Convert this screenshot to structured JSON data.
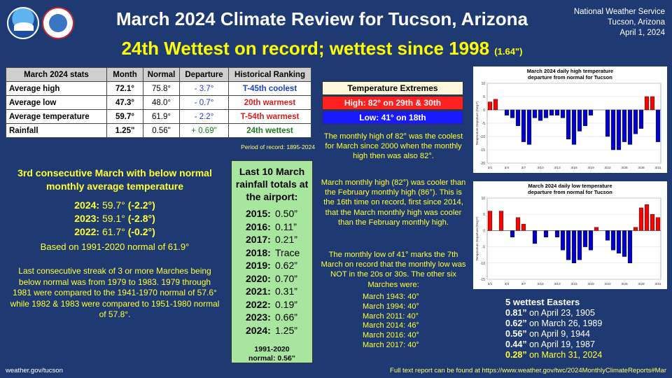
{
  "header": {
    "title": "March 2024 Climate Review for Tucson, Arizona",
    "subtitle": "24th Wettest on record; wettest since 1998",
    "subtitle_note": "(1.64\")",
    "org": "National Weather Service",
    "location": "Tucson, Arizona",
    "date": "April 1, 2024",
    "logos": [
      "noaa-logo",
      "nws-logo"
    ]
  },
  "stats_table": {
    "headers": [
      "March 2024 stats",
      "Month",
      "Normal",
      "Departure",
      "Historical Ranking"
    ],
    "rows": [
      {
        "label": "Average high",
        "month": "72.1°",
        "normal": "75.8°",
        "departure": "- 3.7°",
        "ranking": "T-45th coolest",
        "color": "#1a3fd0"
      },
      {
        "label": "Average low",
        "month": "47.3°",
        "normal": "48.0°",
        "departure": "- 0.7°",
        "ranking": "20th warmest",
        "color": "#d81e1e"
      },
      {
        "label": "Average temperature",
        "month": "59.7°",
        "normal": "61.9°",
        "departure": "- 2.2°",
        "ranking": "T-54th warmest",
        "color": "#d81e1e"
      },
      {
        "label": "Rainfall",
        "month": "1.25\"",
        "normal": "0.56\"",
        "departure": "+ 0.69\"",
        "ranking": "24th wettest",
        "color": "#1e7a1e"
      }
    ],
    "period": "Period of record: 1895-2024"
  },
  "streak": {
    "heading": "3rd consecutive March with below normal monthly average temperature",
    "years": [
      {
        "year": "2024:",
        "value": "59.7°",
        "dep": "(-2.2°)"
      },
      {
        "year": "2023:",
        "value": "59.1°",
        "dep": "(-2.8°)"
      },
      {
        "year": "2022:",
        "value": "61.7°",
        "dep": "(-0.2°)"
      }
    ],
    "based_on": "Based on 1991-2020 normal of 61.9°",
    "last_streak": "Last consecutive streak of 3 or more Marches being below normal was from 1979 to 1983. 1979 through 1981 were compared to the 1941-1970 normal of 57.6° while 1982 & 1983 were compared to 1951-1980 normal of 57.8°."
  },
  "rainfall": {
    "heading": "Last 10 March rainfall totals at the airport:",
    "rows": [
      {
        "year": "2015:",
        "value": "0.50”"
      },
      {
        "year": "2016:",
        "value": "0.11”"
      },
      {
        "year": "2017:",
        "value": "0.21”"
      },
      {
        "year": "2018:",
        "value": "Trace"
      },
      {
        "year": "2019:",
        "value": "0.62”"
      },
      {
        "year": "2020:",
        "value": "0.70”"
      },
      {
        "year": "2021:",
        "value": "0.31”"
      },
      {
        "year": "2022:",
        "value": "0.19”"
      },
      {
        "year": "2023:",
        "value": "0.66”"
      },
      {
        "year": "2024:",
        "value": "1.25”"
      }
    ],
    "normal_label": "1991-2020",
    "normal_value": "normal: 0.56”"
  },
  "extremes": {
    "heading": "Temperature Extremes",
    "high": "High: 82° on 29th & 30th",
    "low": "Low: 41° on 18th"
  },
  "notes": {
    "monthly_high": "The monthly high of 82° was the coolest for March since 2000 when the monthly high then was also 82°.",
    "cooler_than_feb": "March monthly high (82°) was cooler than the February monthly high (86°). This is the 16th time on record, first since 2014, that the March monthly high was cooler than the February monthly high.",
    "monthly_low": "The monthly low of 41° marks the 7th March on record that the monthly low was NOT in the 20s or 30s. The other six Marches were:",
    "marches": [
      "March 1943: 40°",
      "March 1994: 40°",
      "March 2011: 40°",
      "March 2014: 46°",
      "March 2016: 40°",
      "March 2017: 40°"
    ]
  },
  "easters": {
    "heading": "5 wettest Easters",
    "rows": [
      {
        "amount": "0.81”",
        "date": "on April 23, 1905"
      },
      {
        "amount": "0.62”",
        "date": "on March 26, 1989"
      },
      {
        "amount": "0.56”",
        "date": "on April 9, 1944"
      },
      {
        "amount": "0.44”",
        "date": "on April 19, 1987"
      },
      {
        "amount": "0.28”",
        "date": "on March 31, 2024"
      }
    ]
  },
  "footer": {
    "left": "weather.gov/tucson",
    "right": "Full text report can be found at https://www.weather.gov/twc/2024MonthlyClimateReports#Mar"
  },
  "colors": {
    "warm": "#ff0000",
    "cool": "#0000cc",
    "background": "#1f3a73",
    "accent": "#ffff33"
  },
  "chart_data": [
    {
      "type": "bar",
      "title": "March 2024 daily high temperature departure from normal for Tucson",
      "ylabel": "Temperature Departure (Deg F)",
      "ylim": [
        -20,
        10
      ],
      "yticks": [
        10,
        5,
        0,
        -5,
        -10,
        -15,
        -20
      ],
      "xticks": [
        "3/1",
        "3/4",
        "3/7",
        "3/10",
        "3/13",
        "3/16",
        "3/19",
        "3/22",
        "3/25",
        "3/28",
        "3/31"
      ],
      "categories": [
        "3/1",
        "3/2",
        "3/3",
        "3/4",
        "3/5",
        "3/6",
        "3/7",
        "3/8",
        "3/9",
        "3/10",
        "3/11",
        "3/12",
        "3/13",
        "3/14",
        "3/15",
        "3/16",
        "3/17",
        "3/18",
        "3/19",
        "3/20",
        "3/21",
        "3/22",
        "3/23",
        "3/24",
        "3/25",
        "3/26",
        "3/27",
        "3/28",
        "3/29",
        "3/30",
        "3/31"
      ],
      "values": [
        3,
        4,
        0,
        -2,
        -3,
        -6,
        -12,
        -13,
        -3,
        -4,
        -3,
        -2,
        -2,
        -3,
        -11,
        -13,
        -8,
        -6,
        -2,
        0,
        0,
        -10,
        -15,
        -15,
        -12,
        -13,
        -9,
        -7,
        5,
        5,
        -12
      ]
    },
    {
      "type": "bar",
      "title": "March 2024 daily low temperature departure from normal for Tucson",
      "ylabel": "Temperature Departure (Deg F)",
      "ylim": [
        -15,
        10
      ],
      "yticks": [
        10,
        5,
        0,
        -5,
        -10,
        -15
      ],
      "xticks": [
        "3/1",
        "3/4",
        "3/7",
        "3/10",
        "3/13",
        "3/16",
        "3/19",
        "3/22",
        "3/25",
        "3/28",
        "3/31"
      ],
      "categories": [
        "3/1",
        "3/2",
        "3/3",
        "3/4",
        "3/5",
        "3/6",
        "3/7",
        "3/8",
        "3/9",
        "3/10",
        "3/11",
        "3/12",
        "3/13",
        "3/14",
        "3/15",
        "3/16",
        "3/17",
        "3/18",
        "3/19",
        "3/20",
        "3/21",
        "3/22",
        "3/23",
        "3/24",
        "3/25",
        "3/26",
        "3/27",
        "3/28",
        "3/29",
        "3/30",
        "3/31"
      ],
      "values": [
        6,
        0,
        6,
        0,
        -2,
        4,
        2,
        0,
        -4,
        0,
        -2,
        0,
        -2,
        -6,
        -9,
        -10,
        -9,
        -5,
        -6,
        1,
        0,
        -3,
        -6,
        -7,
        -8,
        -10,
        1,
        7,
        8,
        5,
        4
      ]
    }
  ]
}
